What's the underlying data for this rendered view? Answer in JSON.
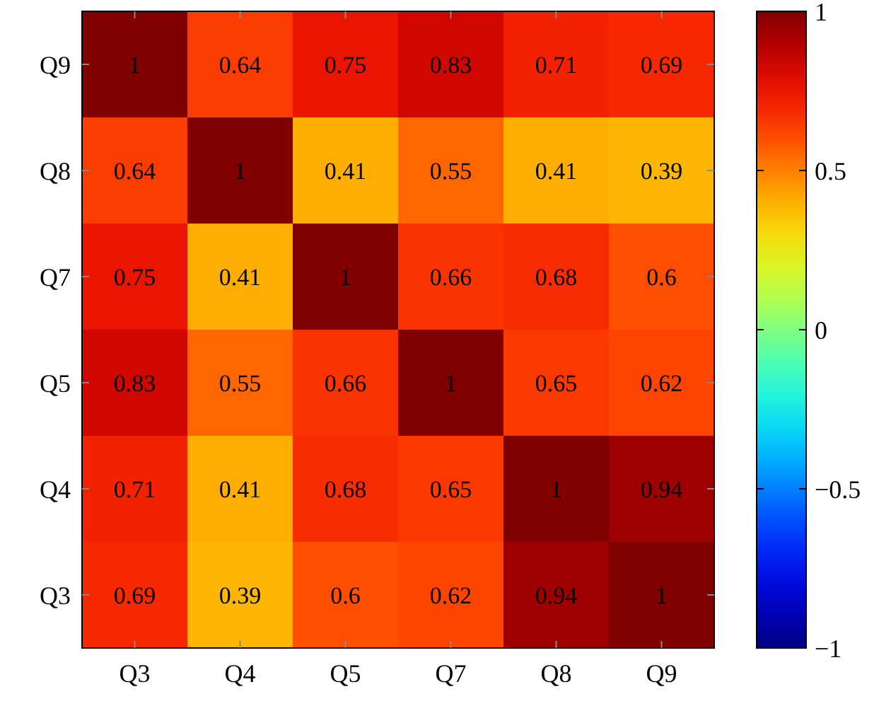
{
  "chart_data": {
    "type": "heatmap",
    "categories": [
      "Q3",
      "Q4",
      "Q5",
      "Q7",
      "Q8",
      "Q9"
    ],
    "y_categories": [
      "Q9",
      "Q8",
      "Q7",
      "Q5",
      "Q4",
      "Q3"
    ],
    "cells": [
      [
        1,
        0.64,
        0.75,
        0.83,
        0.71,
        0.69
      ],
      [
        0.64,
        1,
        0.41,
        0.55,
        0.41,
        0.39
      ],
      [
        0.75,
        0.41,
        1,
        0.66,
        0.68,
        0.6
      ],
      [
        0.83,
        0.55,
        0.66,
        1,
        0.65,
        0.62
      ],
      [
        0.71,
        0.41,
        0.68,
        0.65,
        1,
        0.94
      ],
      [
        0.69,
        0.39,
        0.6,
        0.62,
        0.94,
        1
      ]
    ],
    "clim": [
      -1,
      1
    ],
    "cticks": [
      {
        "value": -1,
        "label": "−1"
      },
      {
        "value": -0.5,
        "label": "−0.5"
      },
      0,
      0.5,
      1
    ],
    "data_labels": true
  }
}
